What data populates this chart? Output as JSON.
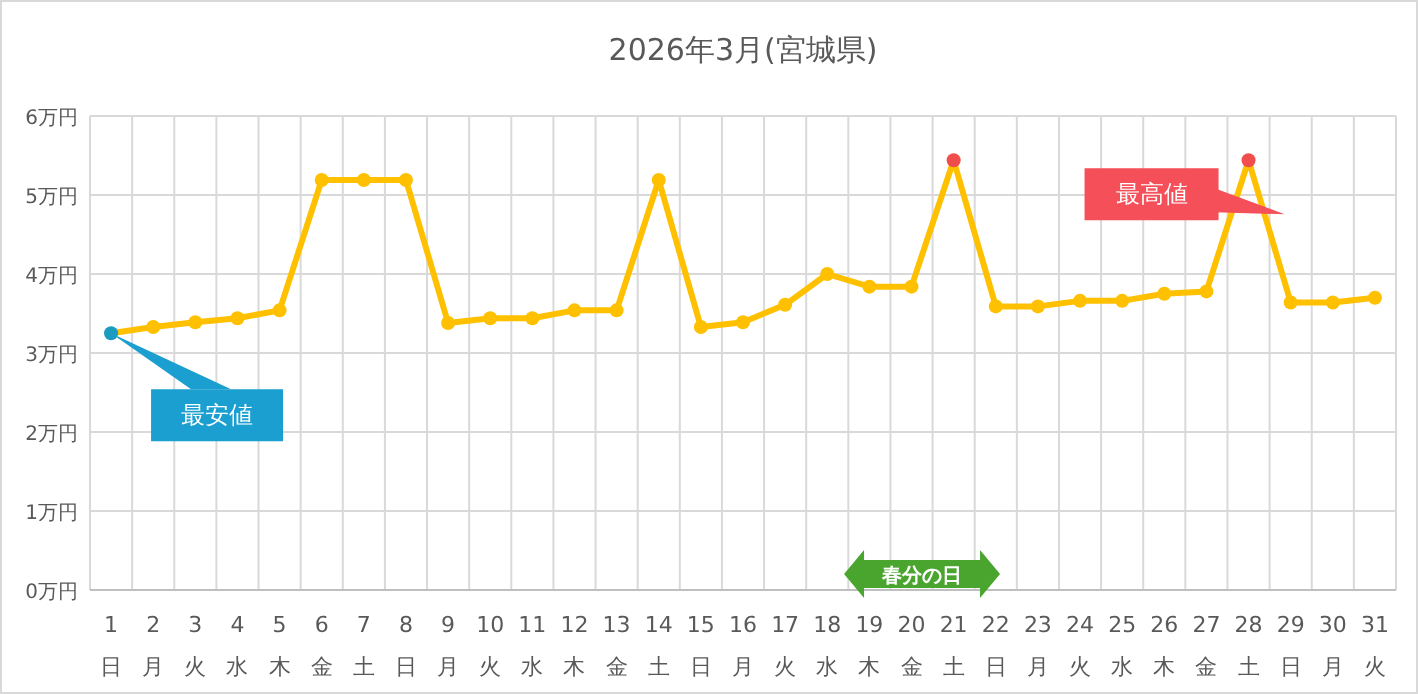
{
  "chart_data": {
    "type": "line",
    "title": "2026年3月(宮城県)",
    "categories": [
      "1\n日",
      "2\n月",
      "3\n火",
      "4\n水",
      "5\n木",
      "6\n金",
      "7\n土",
      "8\n日",
      "9\n月",
      "10\n火",
      "11\n水",
      "12\n木",
      "13\n金",
      "14\n土",
      "15\n日",
      "16\n月",
      "17\n火",
      "18\n水",
      "19\n木",
      "20\n金",
      "21\n土",
      "22\n日",
      "23\n月",
      "24\n火",
      "25\n水",
      "26\n木",
      "27\n金",
      "28\n土",
      "29\n日",
      "30\n月",
      "31\n火"
    ],
    "series": [
      {
        "color": "#ffc000",
        "values": [
          3.25,
          3.33,
          3.39,
          3.44,
          3.54,
          5.19,
          5.19,
          5.19,
          3.38,
          3.44,
          3.44,
          3.54,
          3.54,
          5.19,
          3.33,
          3.39,
          3.61,
          4.0,
          3.84,
          3.84,
          5.44,
          3.59,
          3.59,
          3.66,
          3.66,
          3.75,
          3.78,
          5.44,
          3.64,
          3.64,
          3.7
        ],
        "colors": [
          "#1a9bbf",
          "#ffc000",
          "#ffc000",
          "#ffc000",
          "#ffc000",
          "#ffc000",
          "#ffc000",
          "#ffc000",
          "#ffc000",
          "#ffc000",
          "#ffc000",
          "#ffc000",
          "#ffc000",
          "#ffc000",
          "#ffc000",
          "#ffc000",
          "#ffc000",
          "#ffc000",
          "#ffc000",
          "#ffc000",
          "#f04d4d",
          "#ffc000",
          "#ffc000",
          "#ffc000",
          "#ffc000",
          "#ffc000",
          "#ffc000",
          "#f04d4d",
          "#ffc000",
          "#ffc000",
          "#ffc000"
        ]
      }
    ],
    "ylim": [
      0,
      6
    ],
    "yticks": [
      {
        "value": 0,
        "label": "0万円"
      },
      {
        "value": 1,
        "label": "1万円"
      },
      {
        "value": 2,
        "label": "2万円"
      },
      {
        "value": 3,
        "label": "3万円"
      },
      {
        "value": 4,
        "label": "4万円"
      },
      {
        "value": 5,
        "label": "5万円"
      },
      {
        "value": 6,
        "label": "6万円"
      }
    ],
    "grid": true,
    "marker": "circle",
    "line_style": "solid",
    "annotations": [
      {
        "text": "最安値",
        "x": "1\n日",
        "y": 3.25
      },
      {
        "text": "最高値",
        "x": "28\n土",
        "y": 5.44
      },
      "春分の日"
    ]
  }
}
